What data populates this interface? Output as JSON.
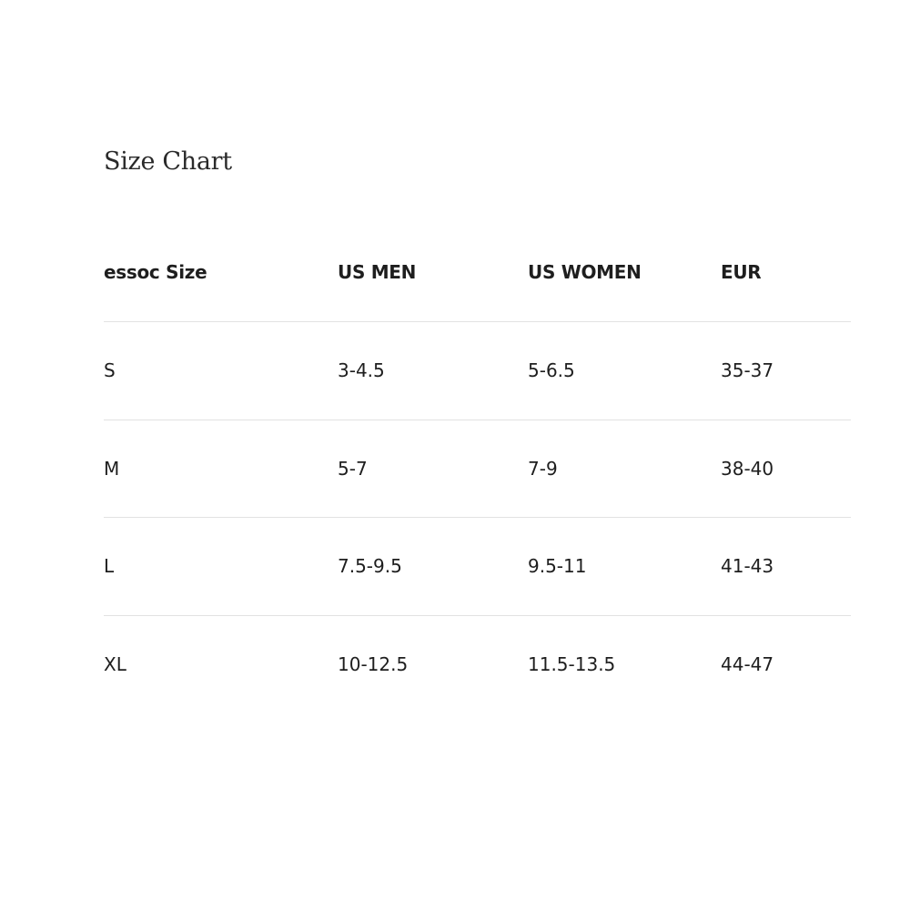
{
  "title": "Size Chart",
  "headers": [
    "essoc Size",
    "US MEN",
    "US WOMEN",
    "EUR"
  ],
  "rows": [
    [
      "S",
      "3-4.5",
      "5-6.5",
      "35-37"
    ],
    [
      "M",
      "5-7",
      "7-9",
      "38-40"
    ],
    [
      "L",
      "7.5-9.5",
      "9.5-11",
      "41-43"
    ],
    [
      "XL",
      "10-12.5",
      "11.5-13.5",
      "44-47"
    ]
  ]
}
